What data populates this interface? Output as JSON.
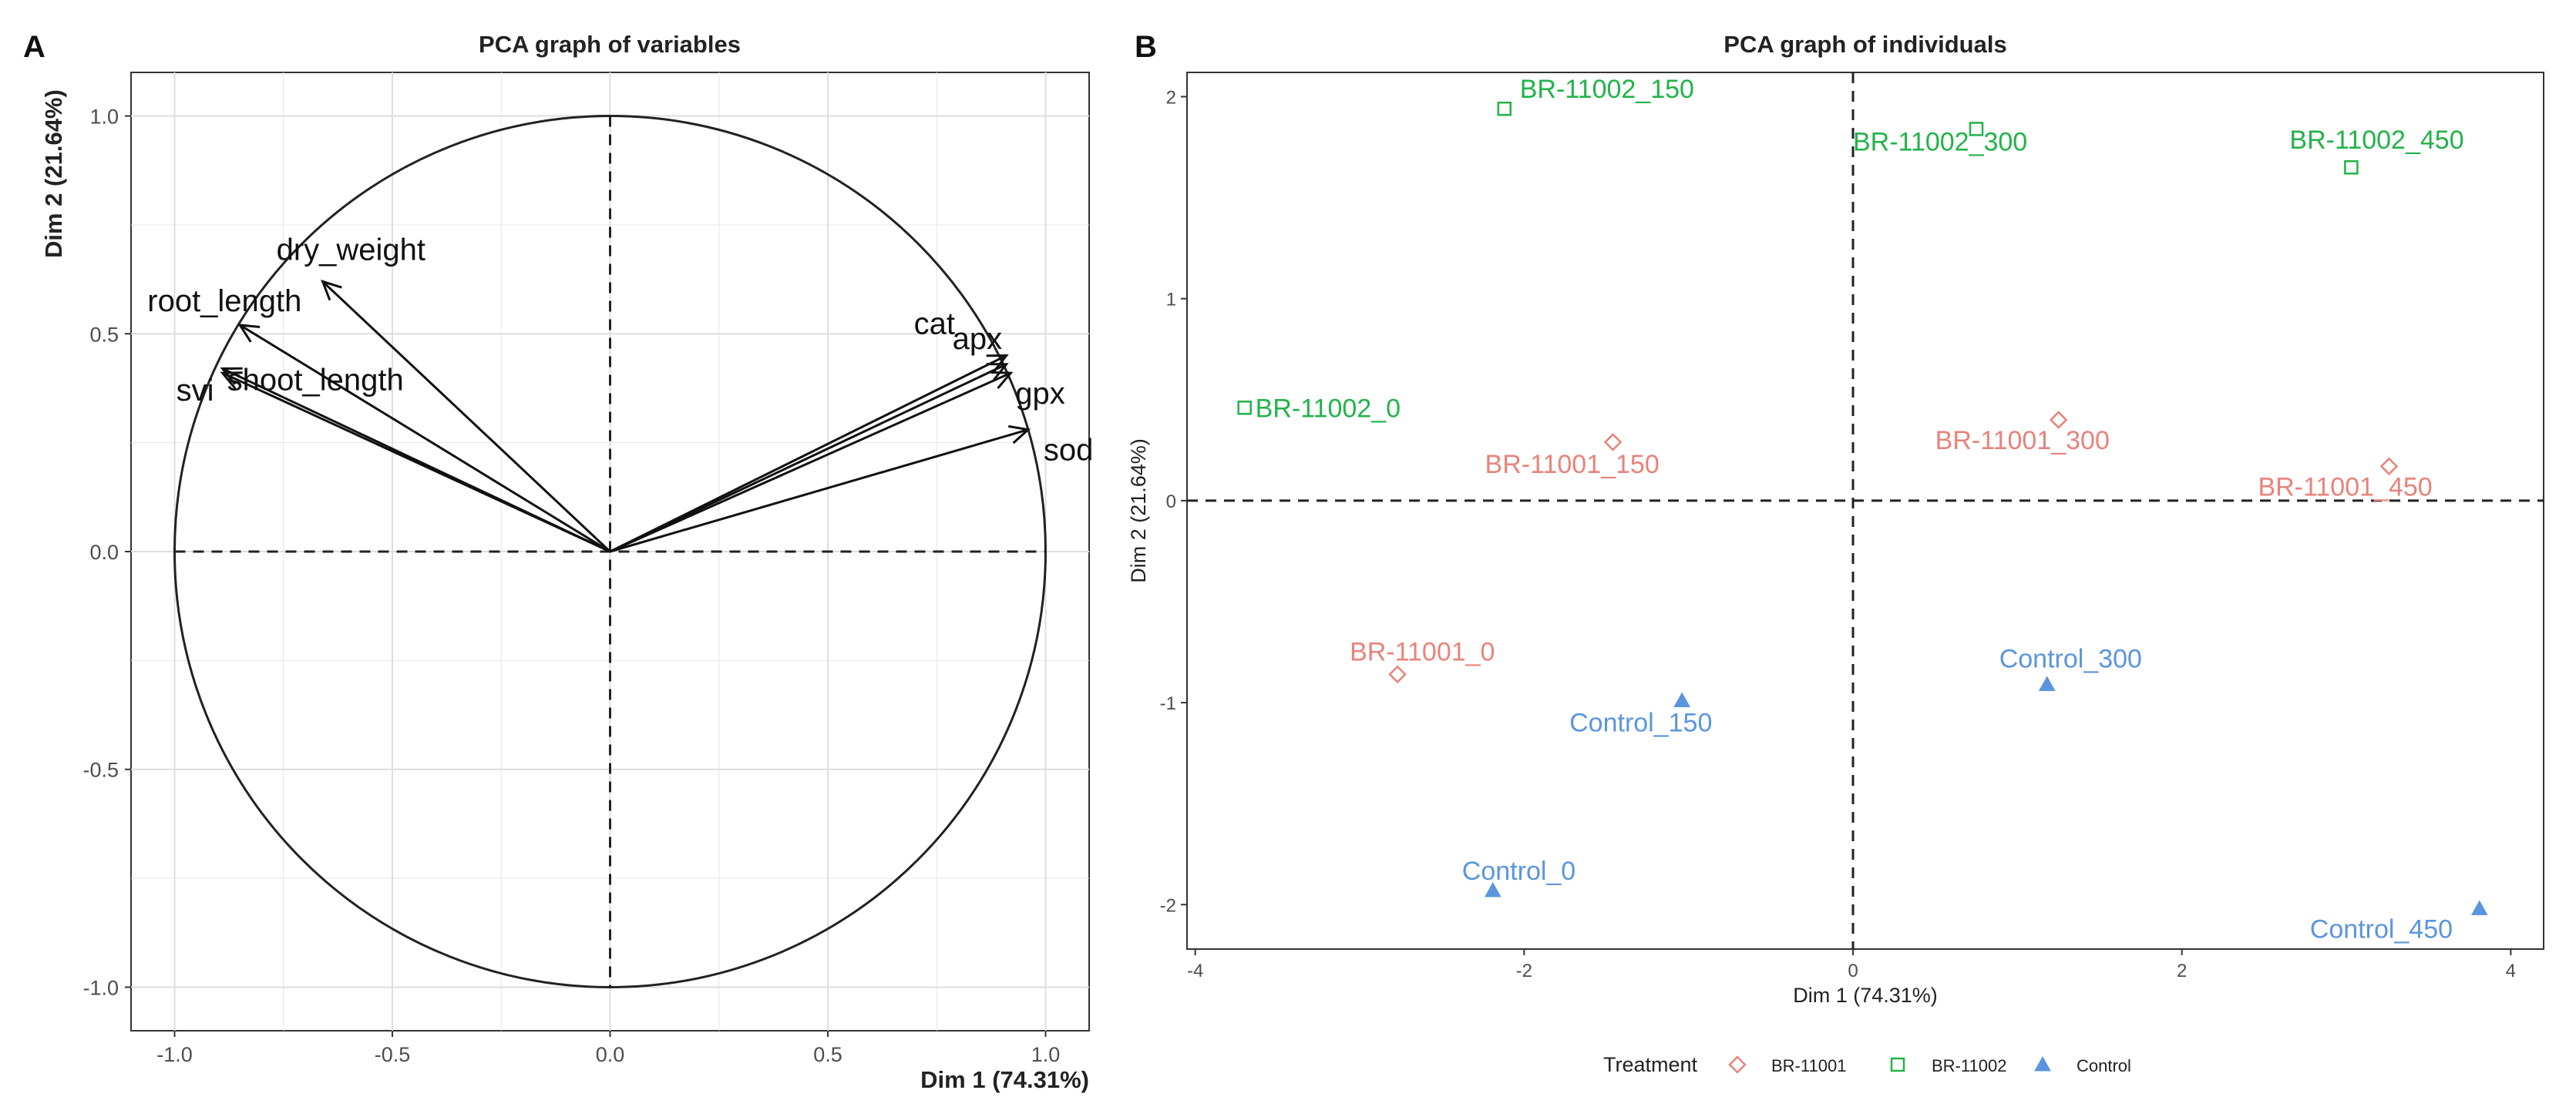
{
  "colors": {
    "BR-11001": "#E8837B",
    "BR-11002": "#22B34A",
    "Control": "#5B95DE",
    "grid": "#E6E6E6",
    "axis": "#222222",
    "text": "#222222",
    "tick_text": "#4D4D4D"
  },
  "chart_data": [
    {
      "panel_label": "A",
      "type": "scatter",
      "subtype": "pca-variable-correlation-circle",
      "title": "PCA graph of variables",
      "xlabel": "Dim 1 (74.31%)",
      "ylabel": "Dim 2 (21.64%)",
      "xlim": [
        -1.1,
        1.1
      ],
      "ylim": [
        -1.1,
        1.1
      ],
      "xticks": [
        -1.0,
        -0.5,
        0.0,
        0.5,
        1.0
      ],
      "yticks": [
        -1.0,
        -0.5,
        0.0,
        0.5,
        1.0
      ],
      "xtick_labels": [
        "-1.0",
        "-0.5",
        "0.0",
        "0.5",
        "1.0"
      ],
      "ytick_labels": [
        "-1.0",
        "-0.5",
        "0.0",
        "0.5",
        "1.0"
      ],
      "grid": true,
      "unit_circle": true,
      "vectors": [
        {
          "name": "dry_weight",
          "x": -0.66,
          "y": 0.62
        },
        {
          "name": "root_length",
          "x": -0.85,
          "y": 0.52
        },
        {
          "name": "shoot_length",
          "x": -0.89,
          "y": 0.42
        },
        {
          "name": "svi",
          "x": -0.89,
          "y": 0.41
        },
        {
          "name": "cat",
          "x": 0.91,
          "y": 0.45
        },
        {
          "name": "apx",
          "x": 0.91,
          "y": 0.43
        },
        {
          "name": "gpx",
          "x": 0.92,
          "y": 0.41
        },
        {
          "name": "sod",
          "x": 0.96,
          "y": 0.28
        }
      ]
    },
    {
      "panel_label": "B",
      "type": "scatter",
      "subtype": "pca-individuals",
      "title": "PCA graph of individuals",
      "xlabel": "Dim 1 (74.31%)",
      "ylabel": "Dim 2 (21.64%)",
      "xlim": [
        -4.05,
        4.2
      ],
      "ylim": [
        -2.22,
        2.12
      ],
      "xticks": [
        -4,
        -2,
        0,
        2,
        4
      ],
      "yticks": [
        -2,
        -1,
        0,
        1,
        2
      ],
      "xtick_labels": [
        "-4",
        "-2",
        "0",
        "2",
        "4"
      ],
      "ytick_labels": [
        "-2",
        "-1",
        "0",
        "1",
        "2"
      ],
      "grid": false,
      "legend": {
        "title": "Treatment",
        "position": "bottom",
        "entries": [
          {
            "name": "BR-11001",
            "shape": "diamond-open"
          },
          {
            "name": "BR-11002",
            "shape": "square-open"
          },
          {
            "name": "Control",
            "shape": "triangle-filled"
          }
        ]
      },
      "points": [
        {
          "label": "BR-11002_150",
          "group": "BR-11002",
          "x": -2.12,
          "y": 1.94
        },
        {
          "label": "BR-11002_300",
          "group": "BR-11002",
          "x": 0.75,
          "y": 1.84
        },
        {
          "label": "BR-11002_450",
          "group": "BR-11002",
          "x": 3.03,
          "y": 1.65
        },
        {
          "label": "BR-11002_0",
          "group": "BR-11002",
          "x": -3.7,
          "y": 0.46
        },
        {
          "label": "BR-11001_150",
          "group": "BR-11001",
          "x": -1.46,
          "y": 0.29
        },
        {
          "label": "BR-11001_300",
          "group": "BR-11001",
          "x": 1.25,
          "y": 0.4
        },
        {
          "label": "BR-11001_450",
          "group": "BR-11001",
          "x": 3.26,
          "y": 0.17
        },
        {
          "label": "BR-11001_0",
          "group": "BR-11001",
          "x": -2.77,
          "y": -0.86
        },
        {
          "label": "Control_300",
          "group": "Control",
          "x": 1.18,
          "y": -0.91
        },
        {
          "label": "Control_150",
          "group": "Control",
          "x": -1.04,
          "y": -0.99
        },
        {
          "label": "Control_0",
          "group": "Control",
          "x": -2.19,
          "y": -1.93
        },
        {
          "label": "Control_450",
          "group": "Control",
          "x": 3.81,
          "y": -2.02
        }
      ]
    }
  ]
}
